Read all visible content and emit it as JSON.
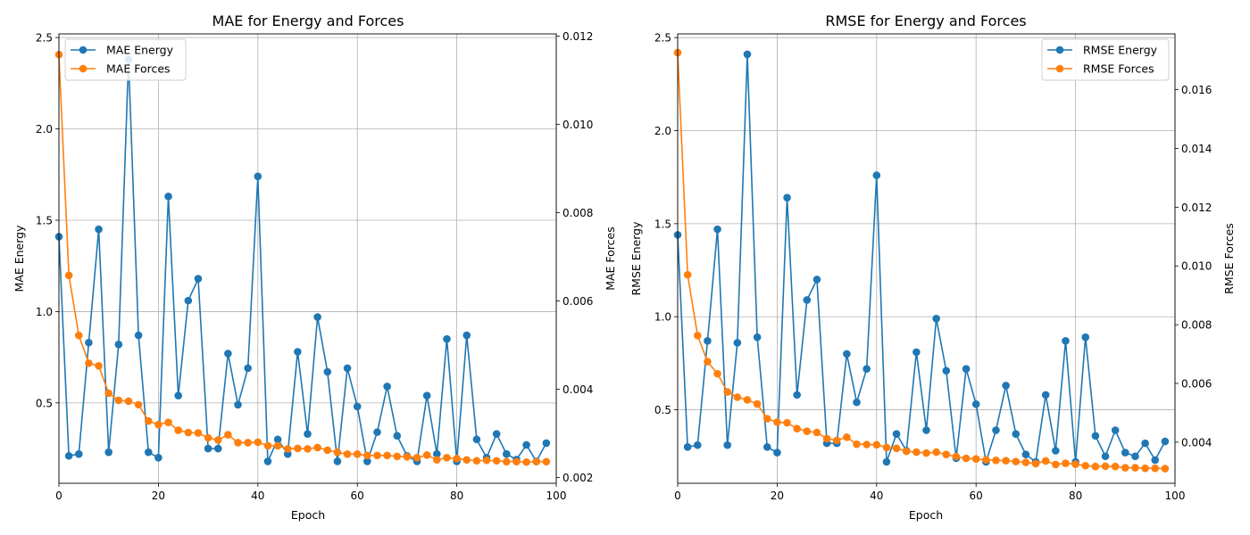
{
  "colors": {
    "energy": "#1f77b4",
    "forces": "#ff7f0e",
    "grid": "#b0b0b0"
  },
  "chart_data": [
    {
      "type": "line",
      "title": "MAE for Energy and Forces",
      "xlabel": "Epoch",
      "ylabel_left": "MAE Energy",
      "ylabel_right": "MAE Forces",
      "xlim": [
        0,
        100
      ],
      "ylim_left": [
        0.06,
        2.52
      ],
      "ylim_right": [
        0.00187,
        0.01205
      ],
      "xticks": [
        "0",
        "20",
        "40",
        "60",
        "80",
        "100"
      ],
      "yticks_left": [
        "0.5",
        "1.0",
        "1.5",
        "2.0",
        "2.5"
      ],
      "yticks_right": [
        "0.002",
        "0.004",
        "0.006",
        "0.008",
        "0.010",
        "0.012"
      ],
      "grid": true,
      "legend_position": "upper-left",
      "x": [
        0,
        2,
        4,
        6,
        8,
        10,
        12,
        14,
        16,
        18,
        20,
        22,
        24,
        26,
        28,
        30,
        32,
        34,
        36,
        38,
        40,
        42,
        44,
        46,
        48,
        50,
        52,
        54,
        56,
        58,
        60,
        62,
        64,
        66,
        68,
        70,
        72,
        74,
        76,
        78,
        80,
        82,
        84,
        86,
        88,
        90,
        92,
        94,
        96,
        98
      ],
      "series": [
        {
          "name": "MAE Energy",
          "axis": "left",
          "color": "#1f77b4",
          "values": [
            1.41,
            0.21,
            0.22,
            0.83,
            1.45,
            0.23,
            0.82,
            2.38,
            0.87,
            0.23,
            0.2,
            1.63,
            0.54,
            1.06,
            1.18,
            0.25,
            0.25,
            0.77,
            0.49,
            0.69,
            1.74,
            0.18,
            0.3,
            0.22,
            0.78,
            0.33,
            0.97,
            0.67,
            0.18,
            0.69,
            0.48,
            0.18,
            0.34,
            0.59,
            0.32,
            0.21,
            0.18,
            0.54,
            0.22,
            0.85,
            0.18,
            0.87,
            0.3,
            0.2,
            0.33,
            0.22,
            0.19,
            0.27,
            0.18,
            0.28
          ]
        },
        {
          "name": "MAE Forces",
          "axis": "right",
          "color": "#ff7f0e",
          "values": [
            0.01158,
            0.00658,
            0.00522,
            0.00459,
            0.00453,
            0.00391,
            0.00375,
            0.00373,
            0.00365,
            0.00328,
            0.0032,
            0.00325,
            0.00307,
            0.00302,
            0.00301,
            0.0029,
            0.00285,
            0.00297,
            0.00279,
            0.00279,
            0.0028,
            0.00272,
            0.00272,
            0.00265,
            0.00266,
            0.00265,
            0.00268,
            0.00262,
            0.00257,
            0.00253,
            0.00253,
            0.0025,
            0.0025,
            0.0025,
            0.00248,
            0.00247,
            0.00245,
            0.00251,
            0.0024,
            0.00245,
            0.00243,
            0.0024,
            0.00238,
            0.00239,
            0.00238,
            0.00236,
            0.00236,
            0.00235,
            0.00236,
            0.00236
          ]
        }
      ]
    },
    {
      "type": "line",
      "title": "RMSE for Energy and Forces",
      "xlabel": "Epoch",
      "ylabel_left": "RMSE Energy",
      "ylabel_right": "RMSE Forces",
      "xlim": [
        0,
        100
      ],
      "ylim_left": [
        0.105,
        2.52
      ],
      "ylim_right": [
        0.0026,
        0.0179
      ],
      "xticks": [
        "0",
        "20",
        "40",
        "60",
        "80",
        "100"
      ],
      "yticks_left": [
        "0.5",
        "1.0",
        "1.5",
        "2.0",
        "2.5"
      ],
      "yticks_right": [
        "0.004",
        "0.006",
        "0.008",
        "0.010",
        "0.012",
        "0.014",
        "0.016"
      ],
      "grid": true,
      "legend_position": "upper-right",
      "x": [
        0,
        2,
        4,
        6,
        8,
        10,
        12,
        14,
        16,
        18,
        20,
        22,
        24,
        26,
        28,
        30,
        32,
        34,
        36,
        38,
        40,
        42,
        44,
        46,
        48,
        50,
        52,
        54,
        56,
        58,
        60,
        62,
        64,
        66,
        68,
        70,
        72,
        74,
        76,
        78,
        80,
        82,
        84,
        86,
        88,
        90,
        92,
        94,
        96,
        98
      ],
      "series": [
        {
          "name": "RMSE Energy",
          "axis": "left",
          "color": "#1f77b4",
          "values": [
            1.44,
            0.3,
            0.31,
            0.87,
            1.47,
            0.31,
            0.86,
            2.41,
            0.89,
            0.3,
            0.27,
            1.64,
            0.58,
            1.09,
            1.2,
            0.32,
            0.32,
            0.8,
            0.54,
            0.72,
            1.76,
            0.22,
            0.37,
            0.28,
            0.81,
            0.39,
            0.99,
            0.71,
            0.24,
            0.72,
            0.53,
            0.22,
            0.39,
            0.63,
            0.37,
            0.26,
            0.22,
            0.58,
            0.28,
            0.87,
            0.22,
            0.89,
            0.36,
            0.25,
            0.39,
            0.27,
            0.25,
            0.32,
            0.23,
            0.33
          ]
        },
        {
          "name": "RMSE Forces",
          "axis": "right",
          "color": "#ff7f0e",
          "values": [
            0.01726,
            0.0097,
            0.00763,
            0.00674,
            0.00633,
            0.00571,
            0.00553,
            0.00544,
            0.0053,
            0.0048,
            0.00468,
            0.00466,
            0.00446,
            0.00437,
            0.00433,
            0.00412,
            0.00406,
            0.00417,
            0.00393,
            0.00392,
            0.00391,
            0.00382,
            0.00379,
            0.00369,
            0.00366,
            0.00363,
            0.00366,
            0.00358,
            0.00351,
            0.00345,
            0.00343,
            0.0034,
            0.00338,
            0.00337,
            0.00334,
            0.00331,
            0.00327,
            0.00336,
            0.00324,
            0.00328,
            0.00325,
            0.0032,
            0.00317,
            0.00318,
            0.00317,
            0.00313,
            0.00313,
            0.00311,
            0.00311,
            0.0031
          ]
        }
      ]
    }
  ]
}
